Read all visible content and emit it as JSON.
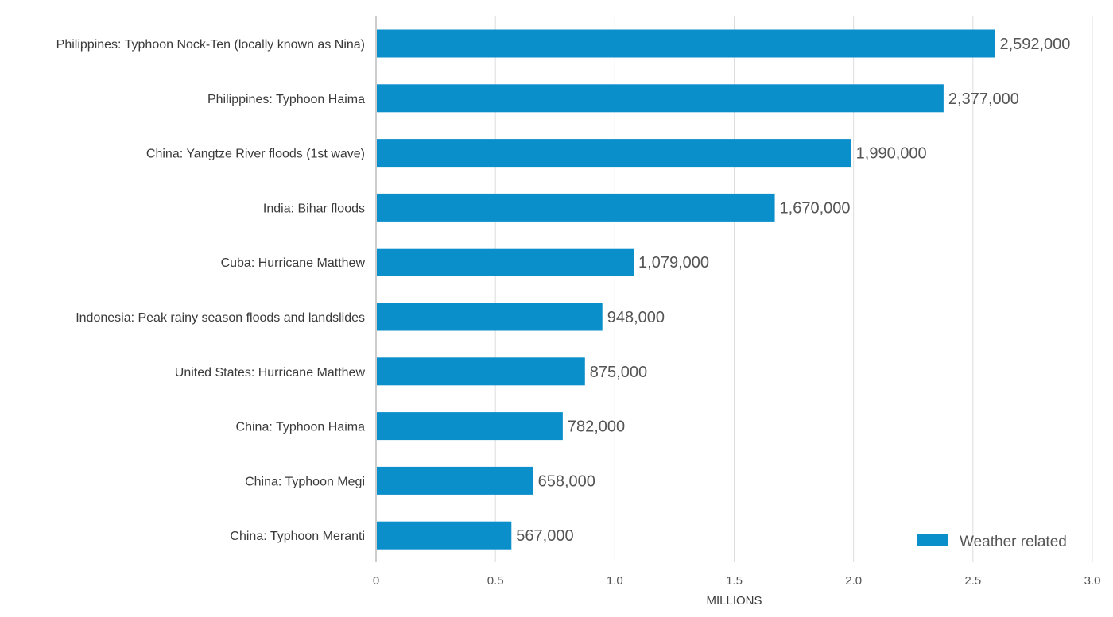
{
  "chart_data": {
    "type": "bar",
    "orientation": "horizontal",
    "categories": [
      "Philippines: Typhoon Nock-Ten (locally known as Nina)",
      "Philippines: Typhoon Haima",
      "China: Yangtze River floods (1st wave)",
      "India: Bihar floods",
      "Cuba: Hurricane Matthew",
      "Indonesia: Peak rainy season floods and landslides",
      "United States: Hurricane Matthew",
      "China: Typhoon Haima",
      "China: Typhoon Megi",
      "China: Typhoon Meranti"
    ],
    "series": [
      {
        "name": "Weather related",
        "color": "#0a8fcb",
        "values": [
          2592000,
          2377000,
          1990000,
          1670000,
          1079000,
          948000,
          875000,
          782000,
          658000,
          567000
        ],
        "value_labels": [
          "2,592,000",
          "2,377,000",
          "1,990,000",
          "1,670,000",
          "1,079,000",
          "948,000",
          "875,000",
          "782,000",
          "658,000",
          "567,000"
        ]
      }
    ],
    "xlabel": "MILLIONS",
    "xlim": [
      0,
      3000000
    ],
    "x_ticks": [
      0,
      500000,
      1000000,
      1500000,
      2000000,
      2500000,
      3000000
    ],
    "x_tick_labels": [
      "0",
      "0.5",
      "1.0",
      "1.5",
      "2.0",
      "2.5",
      "3.0"
    ],
    "grid": "vertical",
    "legend": "bottom-right",
    "colors": {
      "bar": "#0a8fcb",
      "grid": "#dddddd",
      "axis": "#9a9a9a"
    }
  }
}
